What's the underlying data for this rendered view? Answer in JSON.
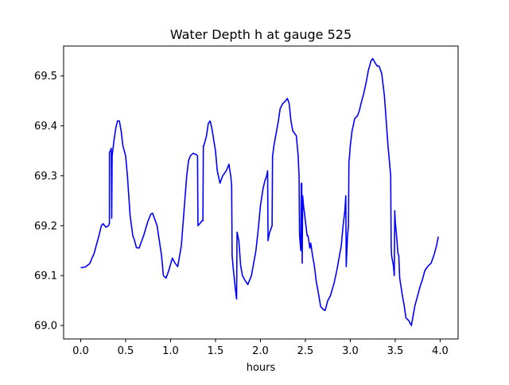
{
  "chart_data": {
    "type": "line",
    "title": "Water Depth h at gauge 525",
    "xlabel": "hours",
    "ylabel": "",
    "xlim": [
      -0.19,
      4.2
    ],
    "ylim": [
      68.973,
      69.56
    ],
    "xticks": [
      0.0,
      0.5,
      1.0,
      1.5,
      2.0,
      2.5,
      3.0,
      3.5,
      4.0
    ],
    "xtick_labels": [
      "0.0",
      "0.5",
      "1.0",
      "1.5",
      "2.0",
      "2.5",
      "3.0",
      "3.5",
      "4.0"
    ],
    "yticks": [
      69.0,
      69.1,
      69.2,
      69.3,
      69.4,
      69.5
    ],
    "ytick_labels": [
      "69.0",
      "69.1",
      "69.2",
      "69.3",
      "69.4",
      "69.5"
    ],
    "grid": false,
    "legend": null,
    "series": [
      {
        "color": "#0000ff",
        "points": [
          [
            0.0,
            69.116
          ],
          [
            0.05,
            69.117
          ],
          [
            0.1,
            69.124
          ],
          [
            0.15,
            69.145
          ],
          [
            0.2,
            69.178
          ],
          [
            0.23,
            69.2
          ],
          [
            0.25,
            69.204
          ],
          [
            0.28,
            69.197
          ],
          [
            0.31,
            69.2
          ],
          [
            0.32,
            69.205
          ],
          [
            0.32,
            69.347
          ],
          [
            0.33,
            69.35
          ],
          [
            0.34,
            69.355
          ],
          [
            0.345,
            69.215
          ],
          [
            0.35,
            69.34
          ],
          [
            0.37,
            69.37
          ],
          [
            0.39,
            69.395
          ],
          [
            0.41,
            69.41
          ],
          [
            0.43,
            69.41
          ],
          [
            0.45,
            69.39
          ],
          [
            0.47,
            69.36
          ],
          [
            0.5,
            69.34
          ],
          [
            0.52,
            69.3
          ],
          [
            0.55,
            69.22
          ],
          [
            0.58,
            69.18
          ],
          [
            0.6,
            69.17
          ],
          [
            0.62,
            69.156
          ],
          [
            0.65,
            69.155
          ],
          [
            0.7,
            69.18
          ],
          [
            0.75,
            69.21
          ],
          [
            0.78,
            69.223
          ],
          [
            0.8,
            69.225
          ],
          [
            0.85,
            69.2
          ],
          [
            0.9,
            69.14
          ],
          [
            0.92,
            69.1
          ],
          [
            0.95,
            69.095
          ],
          [
            0.98,
            69.11
          ],
          [
            1.02,
            69.135
          ],
          [
            1.05,
            69.125
          ],
          [
            1.08,
            69.118
          ],
          [
            1.12,
            69.16
          ],
          [
            1.15,
            69.23
          ],
          [
            1.18,
            69.3
          ],
          [
            1.2,
            69.33
          ],
          [
            1.22,
            69.34
          ],
          [
            1.25,
            69.345
          ],
          [
            1.28,
            69.343
          ],
          [
            1.3,
            69.34
          ],
          [
            1.305,
            69.2
          ],
          [
            1.33,
            69.205
          ],
          [
            1.35,
            69.21
          ],
          [
            1.36,
            69.21
          ],
          [
            1.365,
            69.36
          ],
          [
            1.37,
            69.36
          ],
          [
            1.4,
            69.38
          ],
          [
            1.42,
            69.405
          ],
          [
            1.44,
            69.41
          ],
          [
            1.46,
            69.395
          ],
          [
            1.5,
            69.35
          ],
          [
            1.52,
            69.31
          ],
          [
            1.55,
            69.285
          ],
          [
            1.58,
            69.3
          ],
          [
            1.62,
            69.31
          ],
          [
            1.65,
            69.323
          ],
          [
            1.66,
            69.31
          ],
          [
            1.67,
            69.3
          ],
          [
            1.68,
            69.28
          ],
          [
            1.685,
            69.14
          ],
          [
            1.7,
            69.11
          ],
          [
            1.72,
            69.075
          ],
          [
            1.735,
            69.053
          ],
          [
            1.74,
            69.187
          ],
          [
            1.76,
            69.17
          ],
          [
            1.78,
            69.12
          ],
          [
            1.8,
            69.1
          ],
          [
            1.83,
            69.09
          ],
          [
            1.86,
            69.082
          ],
          [
            1.9,
            69.1
          ],
          [
            1.95,
            69.15
          ],
          [
            1.98,
            69.2
          ],
          [
            2.0,
            69.24
          ],
          [
            2.03,
            69.275
          ],
          [
            2.05,
            69.29
          ],
          [
            2.07,
            69.3
          ],
          [
            2.08,
            69.31
          ],
          [
            2.085,
            69.17
          ],
          [
            2.1,
            69.185
          ],
          [
            2.12,
            69.195
          ],
          [
            2.13,
            69.2
          ],
          [
            2.135,
            69.34
          ],
          [
            2.14,
            69.345
          ],
          [
            2.15,
            69.36
          ],
          [
            2.17,
            69.38
          ],
          [
            2.2,
            69.41
          ],
          [
            2.22,
            69.435
          ],
          [
            2.25,
            69.445
          ],
          [
            2.28,
            69.45
          ],
          [
            2.3,
            69.455
          ],
          [
            2.32,
            69.445
          ],
          [
            2.34,
            69.41
          ],
          [
            2.36,
            69.39
          ],
          [
            2.4,
            69.38
          ],
          [
            2.42,
            69.34
          ],
          [
            2.43,
            69.3
          ],
          [
            2.435,
            69.185
          ],
          [
            2.44,
            69.17
          ],
          [
            2.45,
            69.15
          ],
          [
            2.455,
            69.285
          ],
          [
            2.46,
            69.285
          ],
          [
            2.465,
            69.125
          ],
          [
            2.47,
            69.26
          ],
          [
            2.48,
            69.24
          ],
          [
            2.5,
            69.21
          ],
          [
            2.52,
            69.18
          ],
          [
            2.53,
            69.18
          ],
          [
            2.55,
            69.155
          ],
          [
            2.56,
            69.165
          ],
          [
            2.58,
            69.14
          ],
          [
            2.6,
            69.12
          ],
          [
            2.62,
            69.09
          ],
          [
            2.65,
            69.06
          ],
          [
            2.67,
            69.038
          ],
          [
            2.7,
            69.032
          ],
          [
            2.72,
            69.03
          ],
          [
            2.75,
            69.05
          ],
          [
            2.78,
            69.06
          ],
          [
            2.82,
            69.085
          ],
          [
            2.85,
            69.11
          ],
          [
            2.87,
            69.13
          ],
          [
            2.9,
            69.16
          ],
          [
            2.92,
            69.2
          ],
          [
            2.94,
            69.23
          ],
          [
            2.95,
            69.26
          ],
          [
            2.955,
            69.118
          ],
          [
            2.96,
            69.14
          ],
          [
            2.97,
            69.18
          ],
          [
            2.98,
            69.2
          ],
          [
            2.985,
            69.33
          ],
          [
            2.99,
            69.335
          ],
          [
            3.0,
            69.36
          ],
          [
            3.02,
            69.39
          ],
          [
            3.05,
            69.415
          ],
          [
            3.08,
            69.42
          ],
          [
            3.1,
            69.43
          ],
          [
            3.12,
            69.445
          ],
          [
            3.15,
            69.465
          ],
          [
            3.18,
            69.49
          ],
          [
            3.2,
            69.51
          ],
          [
            3.23,
            69.53
          ],
          [
            3.25,
            69.535
          ],
          [
            3.28,
            69.525
          ],
          [
            3.3,
            69.52
          ],
          [
            3.32,
            69.52
          ],
          [
            3.35,
            69.505
          ],
          [
            3.38,
            69.46
          ],
          [
            3.4,
            69.41
          ],
          [
            3.42,
            69.36
          ],
          [
            3.44,
            69.32
          ],
          [
            3.45,
            69.3
          ],
          [
            3.455,
            69.16
          ],
          [
            3.46,
            69.14
          ],
          [
            3.48,
            69.12
          ],
          [
            3.49,
            69.1
          ],
          [
            3.495,
            69.23
          ],
          [
            3.5,
            69.21
          ],
          [
            3.52,
            69.17
          ],
          [
            3.53,
            69.145
          ],
          [
            3.54,
            69.14
          ],
          [
            3.55,
            69.095
          ],
          [
            3.58,
            69.06
          ],
          [
            3.6,
            69.04
          ],
          [
            3.62,
            69.015
          ],
          [
            3.65,
            69.01
          ],
          [
            3.68,
            69.0
          ],
          [
            3.7,
            69.02
          ],
          [
            3.72,
            69.04
          ],
          [
            3.75,
            69.06
          ],
          [
            3.78,
            69.08
          ],
          [
            3.8,
            69.09
          ],
          [
            3.83,
            69.11
          ],
          [
            3.86,
            69.118
          ],
          [
            3.9,
            69.125
          ],
          [
            3.93,
            69.14
          ],
          [
            3.96,
            69.16
          ],
          [
            3.98,
            69.178
          ]
        ]
      }
    ]
  }
}
